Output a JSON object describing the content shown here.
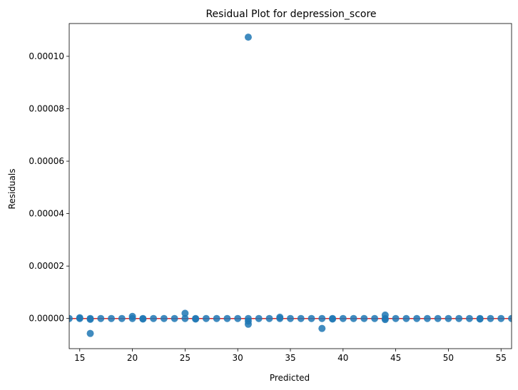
{
  "chart_data": {
    "type": "scatter",
    "title": "Residual Plot for depression_score",
    "xlabel": "Predicted",
    "ylabel": "Residuals",
    "xlim": [
      14,
      56
    ],
    "ylim": [
      -1.15e-05,
      0.0001125
    ],
    "x_ticks": [
      15,
      20,
      25,
      30,
      35,
      40,
      45,
      50,
      55
    ],
    "x_tick_labels": [
      "15",
      "20",
      "25",
      "30",
      "35",
      "40",
      "45",
      "50",
      "55"
    ],
    "y_ticks": [
      0,
      2e-05,
      4e-05,
      6e-05,
      8e-05,
      0.0001
    ],
    "y_tick_labels": [
      "0.00000",
      "0.00002",
      "0.00004",
      "0.00006",
      "0.00008",
      "0.00010"
    ],
    "grid": false,
    "point_color": "#1f77b4",
    "reference_line": {
      "y": 0,
      "color": "#d62728"
    },
    "points": [
      {
        "x": 14,
        "y": 0
      },
      {
        "x": 15,
        "y": 0
      },
      {
        "x": 15,
        "y": 3e-07
      },
      {
        "x": 16,
        "y": 0
      },
      {
        "x": 16,
        "y": -3e-07
      },
      {
        "x": 16,
        "y": -5.7e-06
      },
      {
        "x": 17,
        "y": 0
      },
      {
        "x": 18,
        "y": 0
      },
      {
        "x": 19,
        "y": 0
      },
      {
        "x": 20,
        "y": 0
      },
      {
        "x": 20,
        "y": 8e-07
      },
      {
        "x": 21,
        "y": 0
      },
      {
        "x": 21,
        "y": -2e-07
      },
      {
        "x": 22,
        "y": 0
      },
      {
        "x": 23,
        "y": 0
      },
      {
        "x": 24,
        "y": 0
      },
      {
        "x": 25,
        "y": 0
      },
      {
        "x": 25,
        "y": 2e-06
      },
      {
        "x": 26,
        "y": 0
      },
      {
        "x": 26,
        "y": -2e-07
      },
      {
        "x": 27,
        "y": 0
      },
      {
        "x": 28,
        "y": 0
      },
      {
        "x": 29,
        "y": 0
      },
      {
        "x": 30,
        "y": 0
      },
      {
        "x": 31,
        "y": 0
      },
      {
        "x": 31,
        "y": -1e-06
      },
      {
        "x": 31,
        "y": -2.2e-06
      },
      {
        "x": 31,
        "y": 0.0001073
      },
      {
        "x": 32,
        "y": 0
      },
      {
        "x": 33,
        "y": 0
      },
      {
        "x": 34,
        "y": 0
      },
      {
        "x": 34,
        "y": 5e-07
      },
      {
        "x": 35,
        "y": 0
      },
      {
        "x": 36,
        "y": 0
      },
      {
        "x": 37,
        "y": 0
      },
      {
        "x": 38,
        "y": 0
      },
      {
        "x": 38,
        "y": -3.8e-06
      },
      {
        "x": 39,
        "y": 0
      },
      {
        "x": 39,
        "y": -2e-07
      },
      {
        "x": 40,
        "y": 0
      },
      {
        "x": 41,
        "y": 0
      },
      {
        "x": 42,
        "y": 0
      },
      {
        "x": 43,
        "y": 0
      },
      {
        "x": 44,
        "y": 0
      },
      {
        "x": 44,
        "y": 1.3e-06
      },
      {
        "x": 44,
        "y": -4e-07
      },
      {
        "x": 45,
        "y": 0
      },
      {
        "x": 46,
        "y": 0
      },
      {
        "x": 47,
        "y": 0
      },
      {
        "x": 48,
        "y": 0
      },
      {
        "x": 49,
        "y": 0
      },
      {
        "x": 50,
        "y": 0
      },
      {
        "x": 51,
        "y": 0
      },
      {
        "x": 52,
        "y": 0
      },
      {
        "x": 53,
        "y": 0
      },
      {
        "x": 53,
        "y": -2e-07
      },
      {
        "x": 54,
        "y": 0
      },
      {
        "x": 55,
        "y": 0
      },
      {
        "x": 56,
        "y": 0
      }
    ]
  }
}
